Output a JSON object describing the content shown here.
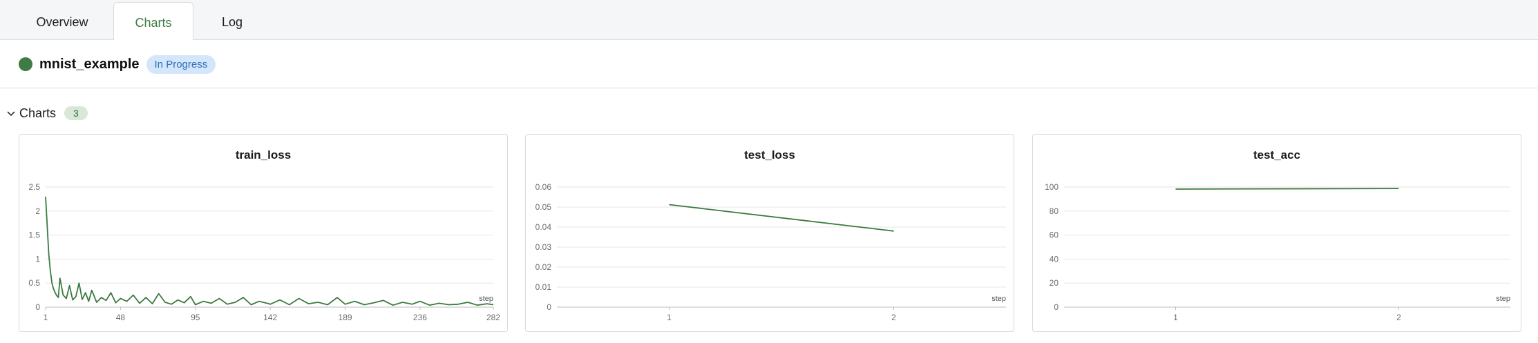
{
  "tabs": [
    {
      "label": "Overview",
      "active": false
    },
    {
      "label": "Charts",
      "active": true
    },
    {
      "label": "Log",
      "active": false
    }
  ],
  "project": {
    "name": "mnist_example",
    "status": "In Progress",
    "status_dot_color": "#3f7c45"
  },
  "section": {
    "title": "Charts",
    "count": "3"
  },
  "colors": {
    "accent": "#3b7a3f",
    "line": "#3a7a3e",
    "badge_bg": "#d3e6fb",
    "badge_text": "#2f6fb8"
  },
  "chart_data": [
    {
      "type": "line",
      "title": "train_loss",
      "xlabel": "step",
      "ylabel": "",
      "ylim": [
        0,
        2.5
      ],
      "yticks": [
        "0",
        "0.5",
        "1",
        "1.5",
        "2",
        "2.5"
      ],
      "xlim": [
        1,
        282
      ],
      "xticks": [
        "1",
        "48",
        "95",
        "142",
        "189",
        "236",
        "282"
      ],
      "series": [
        {
          "x": [
            1,
            2,
            3,
            4,
            5,
            6,
            7,
            8,
            9,
            10,
            12,
            14,
            16,
            18,
            20,
            22,
            24,
            26,
            28,
            30,
            33,
            36,
            39,
            42,
            45,
            48,
            52,
            56,
            60,
            64,
            68,
            72,
            76,
            80,
            84,
            88,
            92,
            95,
            100,
            105,
            110,
            115,
            120,
            125,
            130,
            135,
            140,
            142,
            148,
            154,
            160,
            166,
            172,
            178,
            184,
            189,
            195,
            201,
            207,
            213,
            219,
            225,
            231,
            236,
            242,
            248,
            254,
            260,
            266,
            272,
            278,
            282
          ],
          "y": [
            2.3,
            1.7,
            1.1,
            0.75,
            0.5,
            0.38,
            0.3,
            0.24,
            0.2,
            0.6,
            0.25,
            0.18,
            0.45,
            0.15,
            0.22,
            0.5,
            0.16,
            0.3,
            0.12,
            0.35,
            0.1,
            0.2,
            0.14,
            0.3,
            0.09,
            0.18,
            0.12,
            0.25,
            0.08,
            0.2,
            0.07,
            0.28,
            0.1,
            0.06,
            0.15,
            0.09,
            0.22,
            0.05,
            0.12,
            0.08,
            0.18,
            0.06,
            0.1,
            0.2,
            0.05,
            0.12,
            0.08,
            0.06,
            0.15,
            0.05,
            0.18,
            0.07,
            0.1,
            0.05,
            0.2,
            0.06,
            0.12,
            0.05,
            0.09,
            0.14,
            0.04,
            0.1,
            0.06,
            0.12,
            0.04,
            0.08,
            0.05,
            0.06,
            0.1,
            0.04,
            0.07,
            0.05
          ]
        }
      ]
    },
    {
      "type": "line",
      "title": "test_loss",
      "xlabel": "step",
      "ylabel": "",
      "ylim": [
        0,
        0.06
      ],
      "yticks": [
        "0",
        "0.01",
        "0.02",
        "0.03",
        "0.04",
        "0.05",
        "0.06"
      ],
      "xlim": [
        0.5,
        2.5
      ],
      "xticks": [
        "1",
        "2"
      ],
      "series": [
        {
          "x": [
            1,
            2
          ],
          "y": [
            0.0512,
            0.038
          ]
        }
      ]
    },
    {
      "type": "line",
      "title": "test_acc",
      "xlabel": "step",
      "ylabel": "",
      "ylim": [
        0,
        100
      ],
      "yticks": [
        "0",
        "20",
        "40",
        "60",
        "80",
        "100"
      ],
      "xlim": [
        0.5,
        2.5
      ],
      "xticks": [
        "1",
        "2"
      ],
      "series": [
        {
          "x": [
            1,
            2
          ],
          "y": [
            98.3,
            98.8
          ]
        }
      ]
    }
  ]
}
